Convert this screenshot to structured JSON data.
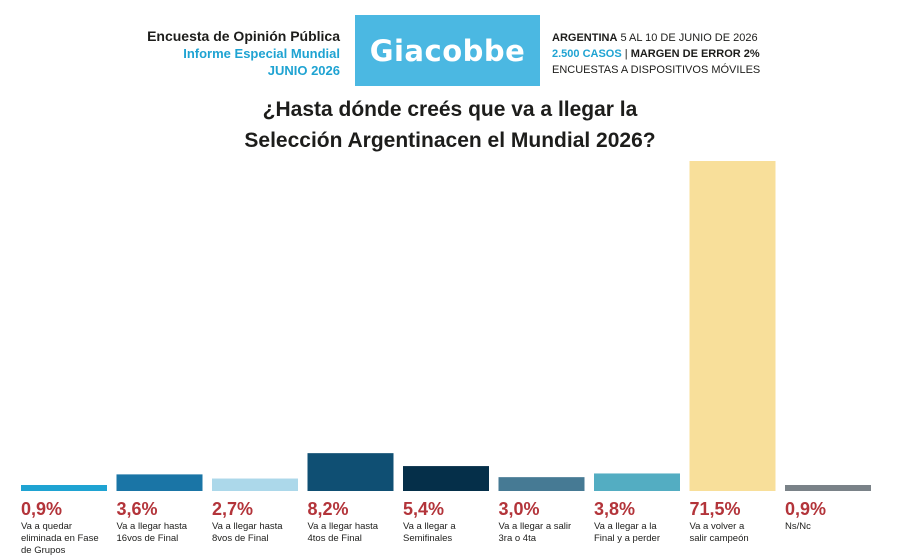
{
  "header": {
    "line1": "Encuesta de Opinión Pública",
    "line2": "Informe Especial Mundial",
    "line3": "JUNIO 2026",
    "brand": "Giacobbe",
    "info_country": "ARGENTINA",
    "info_dates": " 5 AL 10 DE JUNIO DE 2026",
    "info_cases": "2.500 CASOS",
    "info_sep": " | ",
    "info_error": "MARGEN DE ERROR 2%",
    "info_method": "ENCUESTAS A DISPOSITIVOS MÓVILES"
  },
  "title": {
    "line1": "¿Hasta dónde creés que va a llegar la",
    "line2": "Selección Argentinacen el Mundial 2026?"
  },
  "chart_data": {
    "type": "bar",
    "title": "¿Hasta dónde creés que va a llegar la Selección Argentinacen el Mundial 2026?",
    "categories": [
      [
        "Va a quedar",
        "eliminada en Fase",
        "de Grupos"
      ],
      [
        "Va a llegar hasta",
        "16vos de Final"
      ],
      [
        "Va a llegar hasta",
        "8vos de Final"
      ],
      [
        "Va a llegar hasta",
        "4tos de Final"
      ],
      [
        "Va a llegar a",
        "Semifinales"
      ],
      [
        "Va a llegar a salir",
        "3ra o 4ta"
      ],
      [
        "Va a llegar a la",
        "Final y a perder"
      ],
      [
        "Va a volver a",
        "salir campeón"
      ],
      [
        "Ns/Nc"
      ]
    ],
    "values": [
      0.9,
      3.6,
      2.7,
      8.2,
      5.4,
      3.0,
      3.8,
      71.5,
      0.9
    ],
    "value_labels": [
      "0,9%",
      "3,6%",
      "2,7%",
      "8,2%",
      "5,4%",
      "3,0%",
      "3,8%",
      "71,5%",
      "0,9%"
    ],
    "colors": [
      "#1fa3d2",
      "#1a75a6",
      "#acd8ea",
      "#0f4f73",
      "#052f49",
      "#467a94",
      "#53adc2",
      "#f8df9a",
      "#7a8288"
    ],
    "label_color": "#b3343a",
    "ylim": [
      0,
      71.5
    ],
    "grid": false,
    "legend": "none"
  }
}
